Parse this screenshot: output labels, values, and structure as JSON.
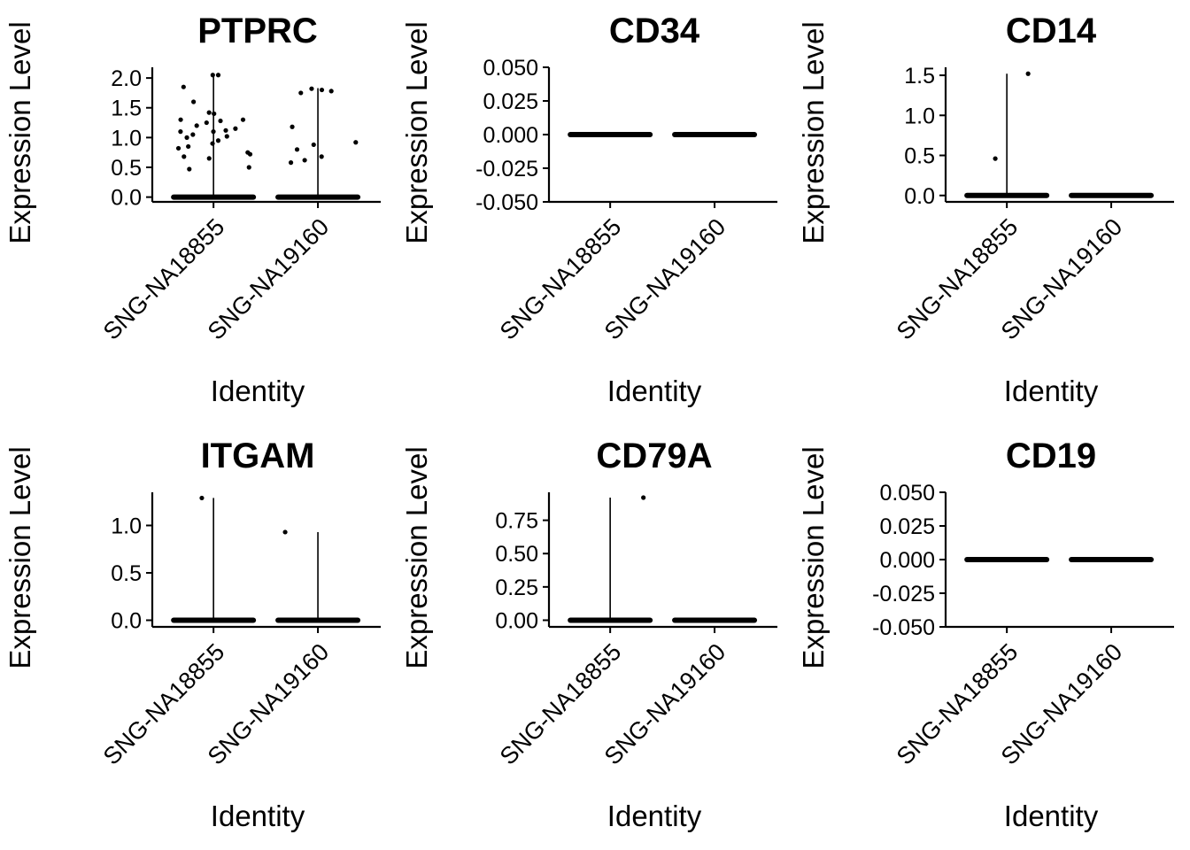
{
  "chart_data": [
    {
      "type": "violin",
      "title": "PTPRC",
      "xlabel": "Identity",
      "ylabel": "Expression Level",
      "categories": [
        "SNG-NA18855",
        "SNG-NA19160"
      ],
      "ylim": [
        -0.08,
        2.18
      ],
      "yticks": [
        0.0,
        0.5,
        1.0,
        1.5,
        2.0
      ],
      "ytick_labels": [
        "0.0",
        "0.5",
        "1.0",
        "1.5",
        "2.0"
      ],
      "violin_max": [
        2.05,
        1.83
      ],
      "points": [
        {
          "category": "SNG-NA18855",
          "values": [
            2.05,
            2.05,
            1.85,
            1.6,
            1.42,
            1.4,
            1.3,
            1.3,
            1.28,
            1.25,
            1.2,
            1.15,
            1.12,
            1.1,
            1.1,
            1.05,
            1.02,
            1.0,
            0.95,
            0.9,
            0.85,
            0.82,
            0.75,
            0.72,
            0.68,
            0.65,
            0.5,
            0.47
          ]
        },
        {
          "category": "SNG-NA19160",
          "values": [
            1.82,
            1.8,
            1.78,
            1.75,
            1.18,
            0.92,
            0.88,
            0.8,
            0.68,
            0.62,
            0.58
          ]
        }
      ]
    },
    {
      "type": "violin",
      "title": "CD34",
      "xlabel": "Identity",
      "ylabel": "Expression Level",
      "categories": [
        "SNG-NA18855",
        "SNG-NA19160"
      ],
      "ylim": [
        -0.05,
        0.05
      ],
      "yticks": [
        -0.05,
        -0.025,
        0.0,
        0.025,
        0.05
      ],
      "ytick_labels": [
        "-0.050",
        "-0.025",
        "0.000",
        "0.025",
        "0.050"
      ],
      "violin_max": [
        0,
        0
      ],
      "points": [
        {
          "category": "SNG-NA18855",
          "values": []
        },
        {
          "category": "SNG-NA19160",
          "values": []
        }
      ]
    },
    {
      "type": "violin",
      "title": "CD14",
      "xlabel": "Identity",
      "ylabel": "Expression Level",
      "categories": [
        "SNG-NA18855",
        "SNG-NA19160"
      ],
      "ylim": [
        -0.08,
        1.6
      ],
      "yticks": [
        0.0,
        0.5,
        1.0,
        1.5
      ],
      "ytick_labels": [
        "0.0",
        "0.5",
        "1.0",
        "1.5"
      ],
      "violin_max": [
        1.52,
        0
      ],
      "points": [
        {
          "category": "SNG-NA18855",
          "values": [
            1.52,
            0.46
          ]
        },
        {
          "category": "SNG-NA19160",
          "values": []
        }
      ]
    },
    {
      "type": "violin",
      "title": "ITGAM",
      "xlabel": "Identity",
      "ylabel": "Expression Level",
      "categories": [
        "SNG-NA18855",
        "SNG-NA19160"
      ],
      "ylim": [
        -0.07,
        1.35
      ],
      "yticks": [
        0.0,
        0.5,
        1.0
      ],
      "ytick_labels": [
        "0.0",
        "0.5",
        "1.0"
      ],
      "violin_max": [
        1.29,
        0.93
      ],
      "points": [
        {
          "category": "SNG-NA18855",
          "values": [
            1.29
          ]
        },
        {
          "category": "SNG-NA19160",
          "values": [
            0.93
          ]
        }
      ]
    },
    {
      "type": "violin",
      "title": "CD79A",
      "xlabel": "Identity",
      "ylabel": "Expression Level",
      "categories": [
        "SNG-NA18855",
        "SNG-NA19160"
      ],
      "ylim": [
        -0.05,
        0.96
      ],
      "yticks": [
        0.0,
        0.25,
        0.5,
        0.75
      ],
      "ytick_labels": [
        "0.00",
        "0.25",
        "0.50",
        "0.75"
      ],
      "violin_max": [
        0.92,
        0
      ],
      "points": [
        {
          "category": "SNG-NA18855",
          "values": [
            0.92
          ]
        },
        {
          "category": "SNG-NA19160",
          "values": []
        }
      ]
    },
    {
      "type": "violin",
      "title": "CD19",
      "xlabel": "Identity",
      "ylabel": "Expression Level",
      "categories": [
        "SNG-NA18855",
        "SNG-NA19160"
      ],
      "ylim": [
        -0.05,
        0.05
      ],
      "yticks": [
        -0.05,
        -0.025,
        0.0,
        0.025,
        0.05
      ],
      "ytick_labels": [
        "-0.050",
        "-0.025",
        "0.000",
        "0.025",
        "0.050"
      ],
      "violin_max": [
        0,
        0
      ],
      "points": [
        {
          "category": "SNG-NA18855",
          "values": []
        },
        {
          "category": "SNG-NA19160",
          "values": []
        }
      ]
    }
  ]
}
